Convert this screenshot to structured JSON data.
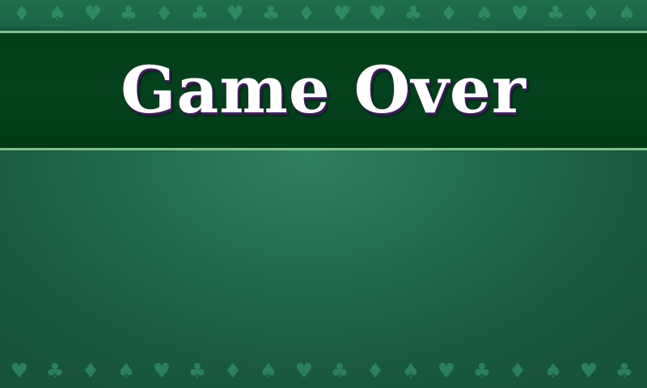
{
  "screen": {
    "title": "Game Over"
  },
  "colors": {
    "felt": "#226b4f",
    "banner": "#033f1a",
    "banner_border": "#7fc08c",
    "title_text": "#ffffff",
    "title_shadow": "#3a1f55",
    "suit_pattern": "#2e8a63"
  },
  "decor": {
    "top_suits": [
      "diamond-icon",
      "spade-icon",
      "heart-icon",
      "club-icon",
      "diamond-icon",
      "club-icon",
      "heart-icon",
      "club-icon",
      "diamond-icon",
      "heart-icon",
      "heart-icon",
      "club-icon",
      "diamond-icon",
      "spade-icon",
      "heart-icon",
      "club-icon",
      "diamond-icon",
      "spade-icon"
    ],
    "bottom_suits": [
      "heart-icon",
      "club-icon",
      "diamond-icon",
      "spade-icon",
      "heart-icon",
      "club-icon",
      "diamond-icon",
      "spade-icon",
      "heart-icon",
      "club-icon",
      "diamond-icon",
      "spade-icon",
      "heart-icon",
      "club-icon",
      "diamond-icon",
      "spade-icon",
      "heart-icon",
      "club-icon"
    ]
  }
}
